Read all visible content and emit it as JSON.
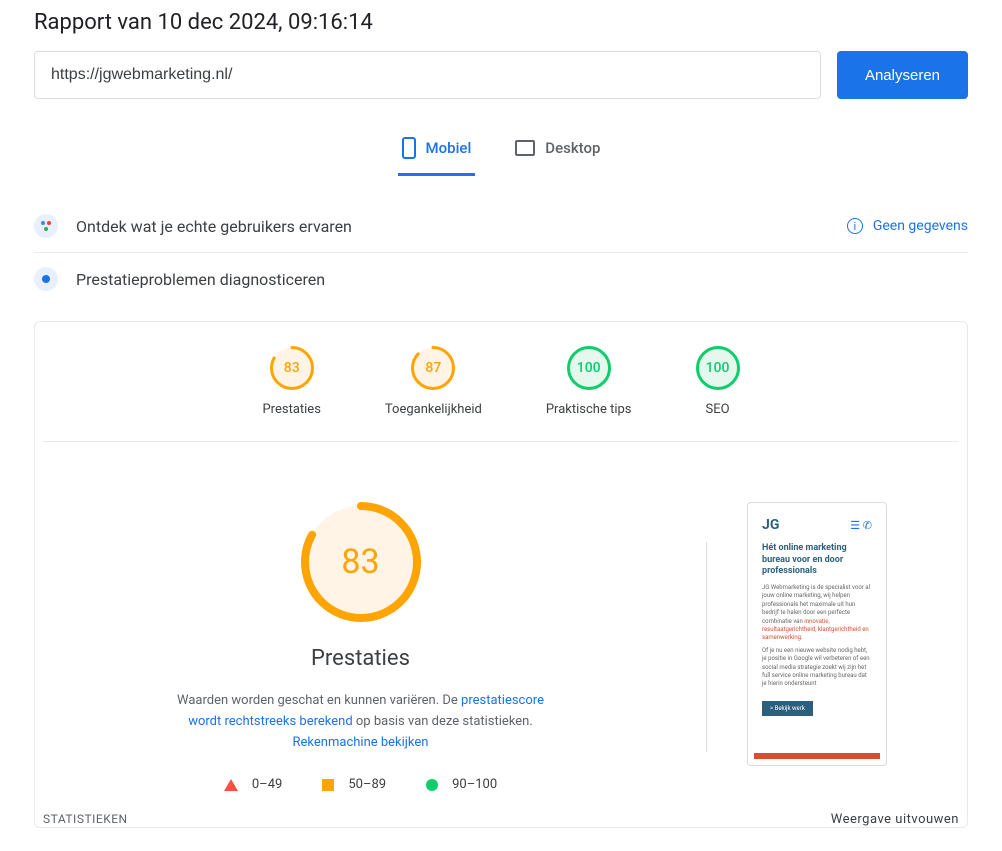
{
  "report_title": "Rapport van 10 dec 2024, 09:16:14",
  "url_value": "https://jgwebmarketing.nl/",
  "analyze_label": "Analyseren",
  "tabs": {
    "mobile": "Mobiel",
    "desktop": "Desktop",
    "active": "mobile"
  },
  "sections": {
    "users": "Ontdek wat je echte gebruikers ervaren",
    "no_data": "Geen gegevens",
    "diagnose": "Prestatieproblemen diagnosticeren"
  },
  "colors": {
    "orange": "#ffa400",
    "green": "#0cce6b",
    "red": "#ff4e42",
    "blue": "#1a73e8",
    "orange_bg": "#fff4e6",
    "green_bg": "#e6f7ed"
  },
  "metrics": [
    {
      "label": "Prestaties",
      "value": 83,
      "color": "#ffa400",
      "bg": "#fff4e6"
    },
    {
      "label": "Toegankelijkheid",
      "value": 87,
      "color": "#ffa400",
      "bg": "#fff4e6"
    },
    {
      "label": "Praktische tips",
      "value": 100,
      "color": "#0cce6b",
      "bg": "#e6f7ed"
    },
    {
      "label": "SEO",
      "value": 100,
      "color": "#0cce6b",
      "bg": "#e6f7ed"
    }
  ],
  "big_metric": {
    "label": "Prestaties",
    "value": 83,
    "color": "#ffa400",
    "bg": "#fff4e6"
  },
  "description": {
    "text1": "Waarden worden geschat en kunnen variëren. De ",
    "link1": "prestatiescore wordt rechtstreeks berekend",
    "text2": " op basis van deze statistieken. ",
    "link2": "Rekenmachine bekijken"
  },
  "legend": {
    "red": "0–49",
    "orange": "50–89",
    "green": "90–100"
  },
  "preview": {
    "logo": "JG",
    "heading": "Hét online marketing bureau voor en door professionals",
    "body1": "JG Webmarketing is de specialist voor al jouw online marketing, wij helpen professionals het maximale uit hun bedrijf te halen door een perfecte combinatie van ",
    "hl": "innovatie, resultaatgerichtheid, klantgerichtheid en samenwerking.",
    "body2": "Of je nu een nieuwe website nodig hebt, je positie in Google wil verbeteren of een social media strategie zoekt wij zijn het full service online marketing bureau dat je hierin ondersteunt",
    "btn": "> Bekijk werk"
  },
  "stats_label": "STATISTIEKEN",
  "expand_label": "Weergave uitvouwen"
}
